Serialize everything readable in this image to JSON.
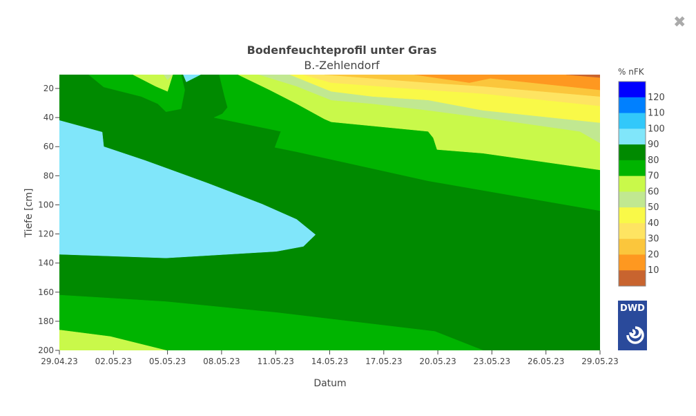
{
  "close_icon": "close-icon",
  "chart_data": {
    "type": "contour",
    "title": "Bodenfeuchteprofil unter Gras",
    "subtitle": "B.-Zehlendorf",
    "xlabel": "Datum",
    "ylabel": "Tiefe [cm]",
    "xlim": [
      "2023-04-29T00:00",
      "2023-05-29T00:00"
    ],
    "ylim": [
      200,
      10.5
    ],
    "y_reversed": true,
    "x_ticks": [
      "29.04.23",
      "02.05.23",
      "05.05.23",
      "08.05.23",
      "11.05.23",
      "14.05.23",
      "17.05.23",
      "20.05.23",
      "23.05.23",
      "26.05.23",
      "29.05.23"
    ],
    "x_tick_dates": [
      "2023-04-29T00:00",
      "2023-05-02T00:00",
      "2023-05-05T00:00",
      "2023-05-08T00:00",
      "2023-05-11T00:00",
      "2023-05-14T00:00",
      "2023-05-17T00:00",
      "2023-05-20T00:00",
      "2023-05-23T00:00",
      "2023-05-26T00:00",
      "2023-05-29T00:00"
    ],
    "y_ticks": [
      20,
      40,
      60,
      80,
      100,
      120,
      140,
      160,
      180,
      200
    ],
    "colorbar": {
      "title": "% nFK",
      "tick_labels": [
        "120",
        "110",
        "100",
        "90",
        "80",
        "70",
        "60",
        "50",
        "40",
        "30",
        "20",
        "10"
      ],
      "bands": [
        {
          "range": [
            120,
            130
          ],
          "color": "#0000ff"
        },
        {
          "range": [
            110,
            120
          ],
          "color": "#0080ff"
        },
        {
          "range": [
            100,
            110
          ],
          "color": "#32c8fa"
        },
        {
          "range": [
            90,
            100
          ],
          "color": "#80e6fa"
        },
        {
          "range": [
            80,
            90
          ],
          "color": "#008a00"
        },
        {
          "range": [
            70,
            80
          ],
          "color": "#00b400"
        },
        {
          "range": [
            60,
            70
          ],
          "color": "#c9f94a"
        },
        {
          "range": [
            50,
            60
          ],
          "color": "#c1e891"
        },
        {
          "range": [
            40,
            50
          ],
          "color": "#f9f948"
        },
        {
          "range": [
            30,
            40
          ],
          "color": "#fee462"
        },
        {
          "range": [
            20,
            30
          ],
          "color": "#fbc63c"
        },
        {
          "range": [
            10,
            20
          ],
          "color": "#fe9820"
        },
        {
          "range": [
            0,
            10
          ],
          "color": "#c8642f"
        }
      ]
    },
    "background_level": "80-90",
    "regions": [
      {
        "level": "90-100",
        "color": "#80e6fa",
        "points": [
          [
            "2023-04-29T00:00",
            42
          ],
          [
            "2023-05-01T09:00",
            50
          ],
          [
            "2023-05-01T11:00",
            60
          ],
          [
            "2023-05-03T18:00",
            69.5
          ],
          [
            "2023-05-07T05:00",
            85
          ],
          [
            "2023-05-10T06:00",
            99.5
          ],
          [
            "2023-05-12T04:00",
            110
          ],
          [
            "2023-05-13T05:00",
            120.5
          ],
          [
            "2023-05-12T13:00",
            128.5
          ],
          [
            "2023-05-11T01:00",
            132
          ],
          [
            "2023-05-04T22:00",
            136.5
          ],
          [
            "2023-04-29T00:00",
            134
          ]
        ]
      },
      {
        "level": "70-80",
        "color": "#00b400",
        "points": [
          [
            "2023-04-30T15:00",
            10.5
          ],
          [
            "2023-05-01T11:00",
            19
          ],
          [
            "2023-05-03T13:00",
            25.5
          ],
          [
            "2023-05-04T11:00",
            30.5
          ],
          [
            "2023-05-04T22:00",
            36
          ],
          [
            "2023-05-05T18:00",
            34
          ],
          [
            "2023-05-05T23:00",
            21
          ],
          [
            "2023-05-05T18:00",
            10.5
          ]
        ]
      },
      {
        "level": "60-70",
        "color": "#c9f94a",
        "points": [
          [
            "2023-05-03T02:00",
            10.5
          ],
          [
            "2023-05-04T08:00",
            18.5
          ],
          [
            "2023-05-05T00:00",
            22
          ],
          [
            "2023-05-05T07:00",
            10.5
          ]
        ]
      },
      {
        "level": "50-60",
        "color": "#c1e891",
        "points": [
          [
            "2023-05-04T19:00",
            10.5
          ],
          [
            "2023-05-05T00:00",
            14
          ],
          [
            "2023-05-05T07:00",
            10.5
          ]
        ]
      },
      {
        "level": "90-100",
        "color": "#80e6fa",
        "points": [
          [
            "2023-05-05T21:00",
            10.5
          ],
          [
            "2023-05-06T01:00",
            15.5
          ],
          [
            "2023-05-06T20:00",
            10.5
          ]
        ]
      },
      {
        "level": "70-80",
        "color": "#00b400",
        "points": [
          [
            "2023-05-07T21:00",
            10.5
          ],
          [
            "2023-05-08T04:00",
            25.5
          ],
          [
            "2023-05-08T08:00",
            33
          ],
          [
            "2023-05-08T01:00",
            37.5
          ],
          [
            "2023-05-07T14:00",
            40
          ],
          [
            "2023-05-11T07:00",
            49.5
          ],
          [
            "2023-05-10T23:00",
            60.5
          ],
          [
            "2023-05-12T04:00",
            63.5
          ],
          [
            "2023-05-19T11:00",
            83.5
          ],
          [
            "2023-05-29T00:00",
            104
          ],
          [
            "2023-05-29T00:00",
            10.5
          ]
        ]
      },
      {
        "level": "60-70",
        "color": "#c9f94a",
        "points": [
          [
            "2023-05-08T22:00",
            10.5
          ],
          [
            "2023-05-10T16:00",
            21
          ],
          [
            "2023-05-12T04:00",
            30.5
          ],
          [
            "2023-05-13T17:00",
            41
          ],
          [
            "2023-05-14T02:00",
            43
          ],
          [
            "2023-05-19T11:00",
            49.5
          ],
          [
            "2023-05-19T18:00",
            54
          ],
          [
            "2023-05-19T23:00",
            62
          ],
          [
            "2023-05-22T12:00",
            64.5
          ],
          [
            "2023-05-29T00:00",
            76
          ],
          [
            "2023-05-29T00:00",
            10.5
          ]
        ]
      },
      {
        "level": "50-60",
        "color": "#c1e891",
        "points": [
          [
            "2023-05-10T02:00",
            10.5
          ],
          [
            "2023-05-12T04:00",
            18.5
          ],
          [
            "2023-05-14T02:00",
            28
          ],
          [
            "2023-05-16T09:00",
            30.5
          ],
          [
            "2023-05-19T11:00",
            35
          ],
          [
            "2023-05-22T12:00",
            40
          ],
          [
            "2023-05-27T21:00",
            49.5
          ],
          [
            "2023-05-29T00:00",
            57.5
          ],
          [
            "2023-05-29T00:00",
            10.5
          ]
        ]
      },
      {
        "level": "40-50",
        "color": "#f9f948",
        "points": [
          [
            "2023-05-11T19:00",
            10.5
          ],
          [
            "2023-05-14T02:00",
            22
          ],
          [
            "2023-05-16T09:00",
            25.5
          ],
          [
            "2023-05-19T11:00",
            28
          ],
          [
            "2023-05-22T12:00",
            35
          ],
          [
            "2023-05-29T00:00",
            43.5
          ],
          [
            "2023-05-29T00:00",
            10.5
          ]
        ]
      },
      {
        "level": "30-40",
        "color": "#fee462",
        "points": [
          [
            "2023-05-12T13:00",
            10.5
          ],
          [
            "2023-05-14T02:00",
            16
          ],
          [
            "2023-05-19T11:00",
            21
          ],
          [
            "2023-05-22T12:00",
            23.5
          ],
          [
            "2023-05-29T00:00",
            32
          ],
          [
            "2023-05-29T00:00",
            10.5
          ]
        ]
      },
      {
        "level": "20-30",
        "color": "#fbc63c",
        "points": [
          [
            "2023-05-13T17:00",
            10.5
          ],
          [
            "2023-05-19T11:00",
            16
          ],
          [
            "2023-05-22T12:00",
            18.5
          ],
          [
            "2023-05-29T00:00",
            25.5
          ],
          [
            "2023-05-29T00:00",
            10.5
          ]
        ]
      },
      {
        "level": "10-20",
        "color": "#fe9820",
        "points": [
          [
            "2023-05-18T17:00",
            10.5
          ],
          [
            "2023-05-21T18:00",
            16
          ],
          [
            "2023-05-22T22:00",
            13
          ],
          [
            "2023-05-29T00:00",
            21
          ],
          [
            "2023-05-29T00:00",
            10.5
          ]
        ]
      },
      {
        "level": "0-10",
        "color": "#c8642f",
        "points": [
          [
            "2023-05-27T03:00",
            10.5
          ],
          [
            "2023-05-29T00:00",
            12.5
          ],
          [
            "2023-05-29T00:00",
            10.5
          ]
        ]
      },
      {
        "level": "70-80",
        "color": "#00b400",
        "points": [
          [
            "2023-04-29T00:00",
            162
          ],
          [
            "2023-05-04T22:00",
            166.5
          ],
          [
            "2023-05-11T01:00",
            174
          ],
          [
            "2023-05-19T20:00",
            187
          ],
          [
            "2023-05-22T12:00",
            200
          ],
          [
            "2023-04-29T00:00",
            200
          ]
        ]
      },
      {
        "level": "60-70",
        "color": "#c9f94a",
        "points": [
          [
            "2023-04-29T00:00",
            186
          ],
          [
            "2023-05-01T20:00",
            190.5
          ],
          [
            "2023-05-04T22:00",
            200
          ],
          [
            "2023-04-29T00:00",
            200
          ]
        ]
      }
    ],
    "logo_text": "DWD"
  }
}
